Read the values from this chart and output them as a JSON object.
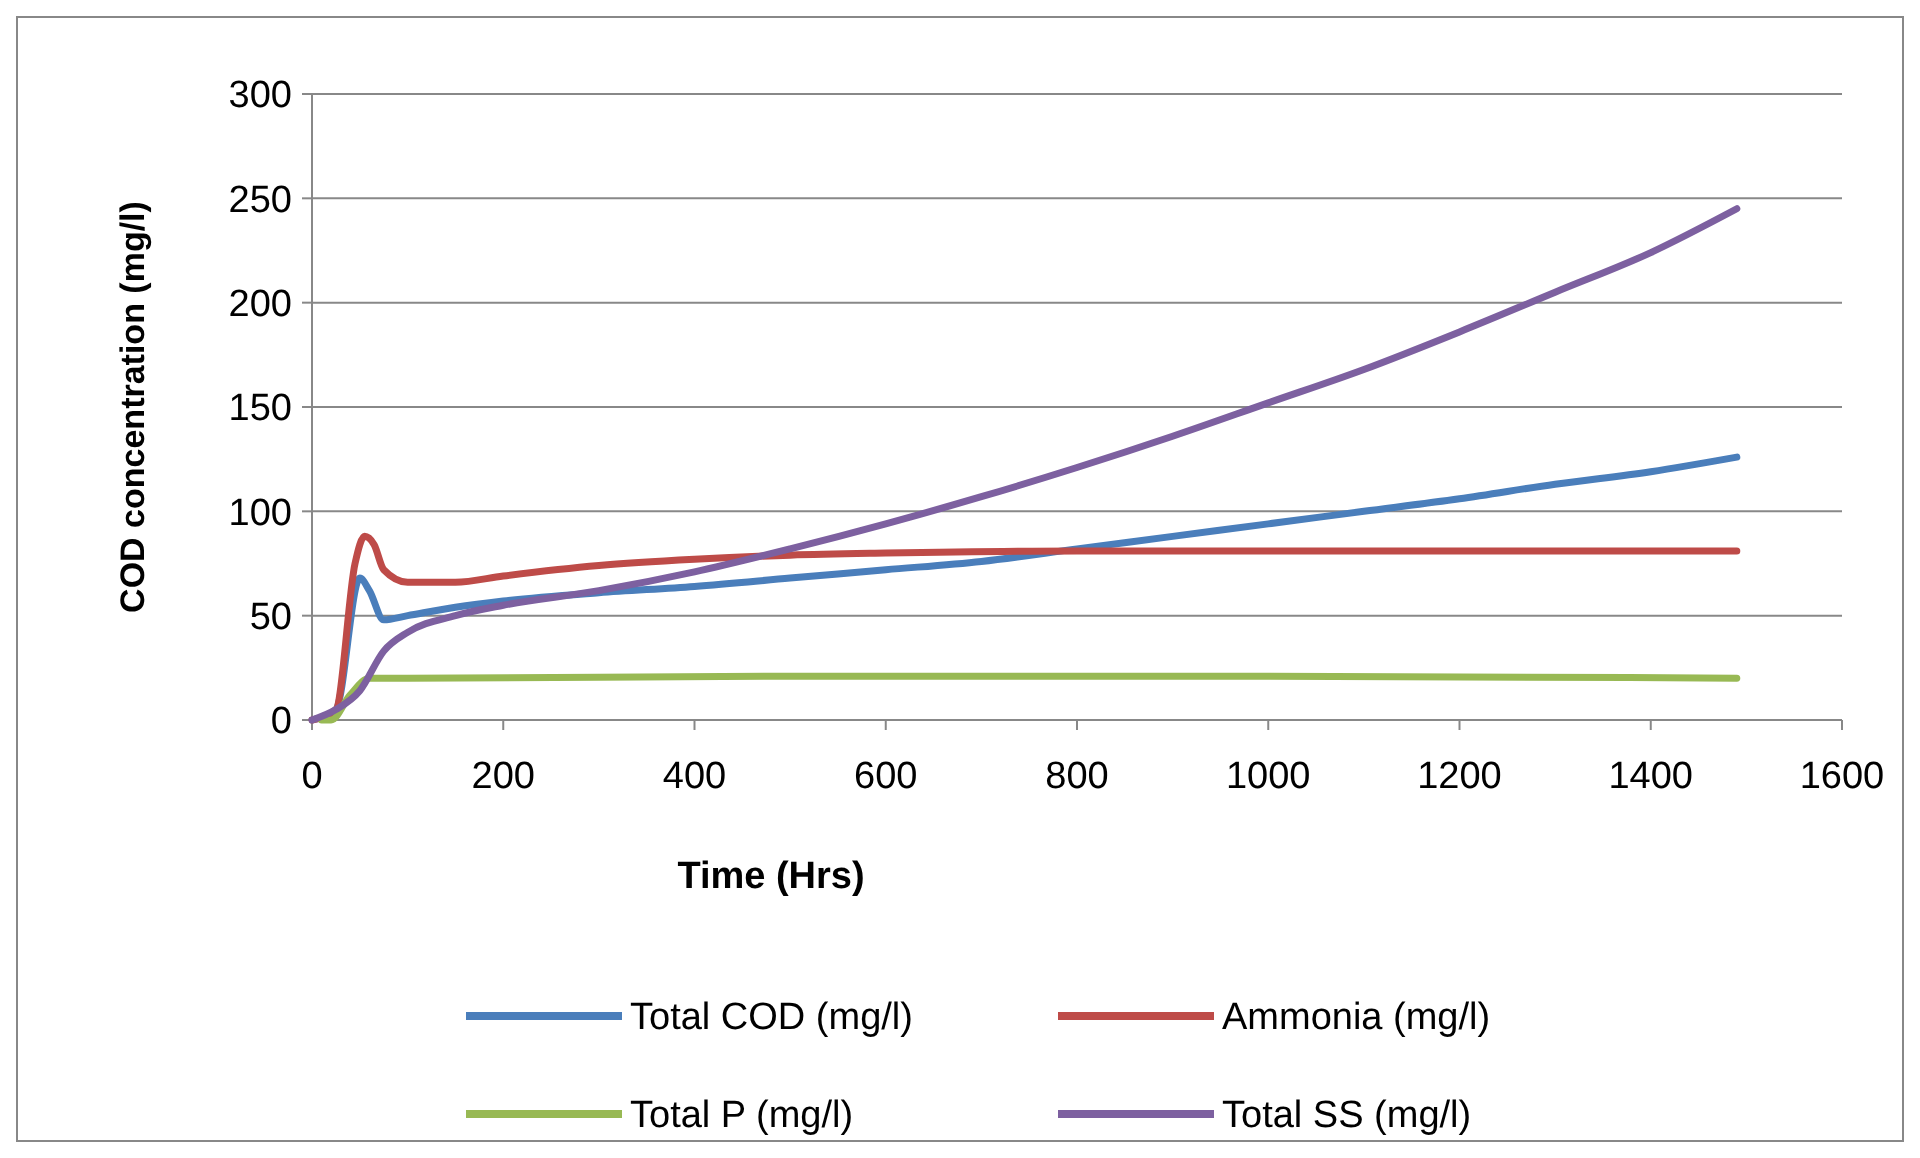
{
  "chart_data": {
    "type": "line",
    "xlabel": "Time (Hrs)",
    "ylabel": "COD concentration (mg/l)",
    "xlim": [
      0,
      1600
    ],
    "xticks": [
      0,
      200,
      400,
      600,
      800,
      1000,
      1200,
      1400,
      1600
    ],
    "ylim": [
      0,
      300
    ],
    "yticks": [
      0,
      50,
      100,
      150,
      200,
      250,
      300
    ],
    "grid": "y",
    "legend": "bottom",
    "series": [
      {
        "name": "Total COD (mg/l)",
        "color": "#4a7ebb",
        "x": [
          0,
          25,
          50,
          60,
          75,
          100,
          150,
          200,
          300,
          400,
          500,
          600,
          700,
          800,
          900,
          1000,
          1100,
          1200,
          1300,
          1400,
          1490
        ],
        "values": [
          0,
          5,
          68,
          62,
          48,
          50,
          54,
          57,
          61,
          64,
          68,
          72,
          76,
          82,
          88,
          94,
          100,
          106,
          113,
          119,
          126
        ]
      },
      {
        "name": "Ammonia (mg/l)",
        "color": "#be4b48",
        "x": [
          0,
          25,
          45,
          55,
          65,
          75,
          100,
          150,
          200,
          300,
          400,
          500,
          600,
          800,
          1000,
          1200,
          1490
        ],
        "values": [
          0,
          5,
          75,
          88,
          84,
          72,
          66,
          66,
          69,
          74,
          77,
          79,
          80,
          81,
          81,
          81,
          81
        ]
      },
      {
        "name": "Total P (mg/l)",
        "color": "#98b954",
        "x": [
          10,
          20,
          40,
          60,
          100,
          500,
          1000,
          1490
        ],
        "values": [
          0,
          0,
          12,
          20,
          20,
          21,
          21,
          20
        ]
      },
      {
        "name": "Total SS (mg/l)",
        "color": "#7d60a0",
        "x": [
          0,
          25,
          50,
          75,
          100,
          150,
          200,
          300,
          400,
          500,
          600,
          700,
          800,
          900,
          1000,
          1100,
          1200,
          1300,
          1400,
          1490
        ],
        "values": [
          0,
          5,
          14,
          33,
          42,
          50,
          55,
          62,
          71,
          82,
          94,
          107,
          121,
          136,
          152,
          168,
          186,
          205,
          224,
          245
        ]
      }
    ]
  }
}
